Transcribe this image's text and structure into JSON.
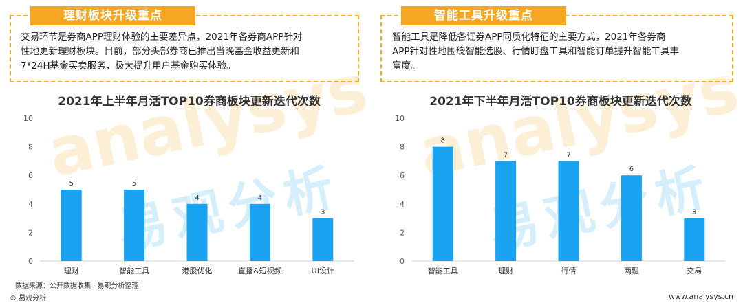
{
  "left_panel": {
    "title": "理财板块升级重点",
    "lines": [
      "交易环节是券商APP理财体验的主要差异点，2021年各券商APP针对",
      "性地更新理财板块。目前，部分头部券商已推出当晚基金收益更新和",
      "7*24H基金买卖服务，极大提升用户基金购买体验。"
    ]
  },
  "right_panel": {
    "title": "智能工具升级重点",
    "lines": [
      "智能工具是降低各证券APP同质化特征的主要方式，2021年各券商",
      "APP针对性地围绕智能选股、行情盯盘工具和智能订单提升智能工具丰",
      "富度。"
    ]
  },
  "chart_data": [
    {
      "type": "bar",
      "title": "2021年上半年月活TOP10券商板块更新迭代次数",
      "categories": [
        "理财",
        "智能工具",
        "港股优化",
        "直播&短视频",
        "UI设计"
      ],
      "values": [
        5,
        5,
        4,
        4,
        3
      ],
      "ylim": [
        0,
        10
      ],
      "yticks": [
        0,
        2,
        4,
        6,
        8,
        10
      ],
      "color": "#1aa3f0",
      "grid": false
    },
    {
      "type": "bar",
      "title": "2021年下半年月活TOP10券商板块更新迭代次数",
      "categories": [
        "智能工具",
        "理财",
        "行情",
        "两融",
        "交易"
      ],
      "values": [
        8,
        7,
        7,
        6,
        3
      ],
      "ylim": [
        0,
        10
      ],
      "yticks": [
        0,
        2,
        4,
        6,
        8,
        10
      ],
      "color": "#1aa3f0",
      "grid": false
    }
  ],
  "footer": {
    "source": "数据来源：公开数据收集 · 易观分析整理",
    "copyright": "© 易观分析",
    "website": "www.analysys.cn"
  },
  "watermark": {
    "brand": "analysys",
    "cn": "易观分析"
  }
}
